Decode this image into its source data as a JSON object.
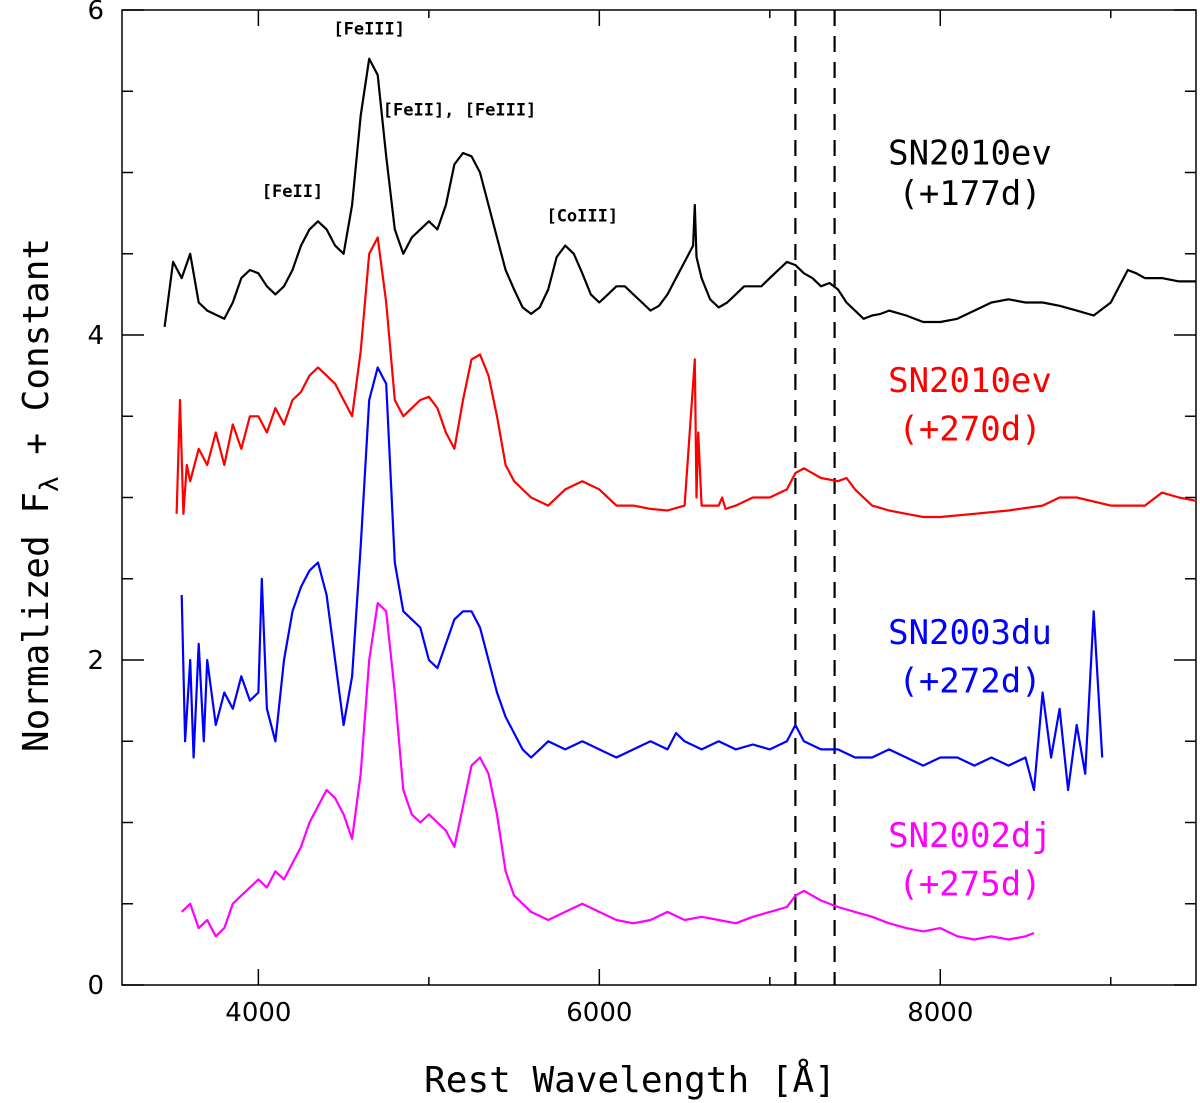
{
  "chart_data": {
    "type": "line",
    "xlabel": "Rest Wavelength [Å]",
    "ylabel": "Normalized F",
    "ylabel_subscript": "λ",
    "ylabel_suffix": " + Constant",
    "xlim": [
      3200,
      9500
    ],
    "ylim": [
      0,
      6
    ],
    "xticks": [
      4000,
      6000,
      8000
    ],
    "yticks": [
      0,
      2,
      4,
      6
    ],
    "grid": false,
    "vlines": [
      7150,
      7380
    ],
    "annotations": [
      {
        "text": "[FeII]",
        "x": 4200,
        "y": 4.85
      },
      {
        "text": "[FeIII]",
        "x": 4650,
        "y": 5.85
      },
      {
        "text": "[FeII], [FeIII]",
        "x": 5180,
        "y": 5.35
      },
      {
        "text": "[CoIII]",
        "x": 5900,
        "y": 4.7
      }
    ],
    "series": [
      {
        "name": "SN2010ev",
        "label_line2": "(+177d)",
        "color": "#000000",
        "label_y": [
          5.05,
          4.8
        ],
        "x": [
          3450,
          3500,
          3550,
          3600,
          3650,
          3700,
          3800,
          3850,
          3900,
          3950,
          4000,
          4050,
          4100,
          4150,
          4200,
          4250,
          4300,
          4350,
          4400,
          4450,
          4500,
          4550,
          4600,
          4650,
          4700,
          4750,
          4800,
          4850,
          4900,
          4950,
          5000,
          5050,
          5100,
          5150,
          5200,
          5250,
          5300,
          5350,
          5400,
          5450,
          5500,
          5550,
          5600,
          5650,
          5700,
          5750,
          5800,
          5850,
          5900,
          5950,
          6000,
          6050,
          6100,
          6150,
          6200,
          6250,
          6300,
          6350,
          6400,
          6450,
          6500,
          6550,
          6560,
          6570,
          6600,
          6650,
          6700,
          6750,
          6800,
          6850,
          6900,
          6950,
          7000,
          7050,
          7100,
          7150,
          7200,
          7250,
          7300,
          7350,
          7400,
          7450,
          7500,
          7550,
          7600,
          7650,
          7700,
          7800,
          7900,
          8000,
          8100,
          8200,
          8300,
          8400,
          8500,
          8600,
          8700,
          8800,
          8900,
          9000,
          9100,
          9150,
          9200,
          9300,
          9400,
          9500
        ],
        "y": [
          4.05,
          4.45,
          4.35,
          4.5,
          4.2,
          4.15,
          4.1,
          4.2,
          4.35,
          4.4,
          4.38,
          4.3,
          4.25,
          4.3,
          4.4,
          4.55,
          4.65,
          4.7,
          4.65,
          4.55,
          4.5,
          4.8,
          5.35,
          5.7,
          5.6,
          5.1,
          4.65,
          4.5,
          4.6,
          4.65,
          4.7,
          4.65,
          4.8,
          5.05,
          5.12,
          5.1,
          5.0,
          4.8,
          4.6,
          4.4,
          4.28,
          4.17,
          4.13,
          4.17,
          4.28,
          4.48,
          4.55,
          4.5,
          4.38,
          4.25,
          4.2,
          4.25,
          4.3,
          4.3,
          4.25,
          4.2,
          4.15,
          4.18,
          4.25,
          4.35,
          4.45,
          4.55,
          4.8,
          4.48,
          4.35,
          4.22,
          4.17,
          4.2,
          4.25,
          4.3,
          4.3,
          4.3,
          4.35,
          4.4,
          4.45,
          4.43,
          4.38,
          4.35,
          4.3,
          4.32,
          4.28,
          4.2,
          4.15,
          4.1,
          4.12,
          4.13,
          4.15,
          4.12,
          4.08,
          4.08,
          4.1,
          4.15,
          4.2,
          4.22,
          4.2,
          4.2,
          4.18,
          4.15,
          4.12,
          4.2,
          4.4,
          4.38,
          4.35,
          4.35,
          4.33,
          4.33
        ]
      },
      {
        "name": "SN2010ev",
        "label_line2": "(+270d)",
        "color": "#ff0000",
        "label_y": [
          3.65,
          3.35
        ],
        "x": [
          3520,
          3540,
          3560,
          3580,
          3600,
          3650,
          3700,
          3750,
          3800,
          3850,
          3900,
          3950,
          4000,
          4050,
          4100,
          4150,
          4200,
          4250,
          4300,
          4350,
          4400,
          4450,
          4500,
          4550,
          4600,
          4650,
          4700,
          4750,
          4800,
          4850,
          4900,
          4950,
          5000,
          5050,
          5100,
          5150,
          5200,
          5250,
          5300,
          5350,
          5400,
          5450,
          5500,
          5600,
          5700,
          5800,
          5900,
          6000,
          6100,
          6200,
          6300,
          6400,
          6500,
          6560,
          6570,
          6580,
          6600,
          6650,
          6700,
          6720,
          6740,
          6800,
          6900,
          7000,
          7100,
          7150,
          7200,
          7300,
          7400,
          7450,
          7500,
          7600,
          7700,
          7800,
          7900,
          8000,
          8200,
          8400,
          8600,
          8700,
          8800,
          9000,
          9200,
          9300,
          9400,
          9500
        ],
        "y": [
          2.9,
          3.6,
          2.9,
          3.2,
          3.1,
          3.3,
          3.2,
          3.4,
          3.2,
          3.45,
          3.3,
          3.5,
          3.5,
          3.4,
          3.55,
          3.45,
          3.6,
          3.65,
          3.75,
          3.8,
          3.75,
          3.7,
          3.6,
          3.5,
          3.9,
          4.5,
          4.6,
          4.2,
          3.6,
          3.5,
          3.55,
          3.6,
          3.62,
          3.55,
          3.4,
          3.3,
          3.6,
          3.85,
          3.88,
          3.75,
          3.5,
          3.2,
          3.1,
          3.0,
          2.95,
          3.05,
          3.1,
          3.05,
          2.95,
          2.95,
          2.93,
          2.92,
          2.95,
          3.85,
          3.0,
          3.4,
          2.95,
          2.95,
          2.95,
          3.0,
          2.93,
          2.95,
          3.0,
          3.0,
          3.05,
          3.15,
          3.18,
          3.12,
          3.1,
          3.12,
          3.05,
          2.95,
          2.92,
          2.9,
          2.88,
          2.88,
          2.9,
          2.92,
          2.95,
          3.0,
          3.0,
          2.95,
          2.95,
          3.03,
          3.0,
          2.98
        ]
      },
      {
        "name": "SN2003du",
        "label_line2": "(+272d)",
        "color": "#0000ff",
        "label_y": [
          2.1,
          1.8
        ],
        "x": [
          3550,
          3570,
          3600,
          3620,
          3650,
          3680,
          3700,
          3750,
          3800,
          3850,
          3900,
          3950,
          4000,
          4020,
          4050,
          4100,
          4150,
          4200,
          4250,
          4300,
          4350,
          4400,
          4450,
          4500,
          4550,
          4600,
          4650,
          4700,
          4750,
          4800,
          4850,
          4900,
          4950,
          5000,
          5050,
          5100,
          5150,
          5200,
          5250,
          5300,
          5350,
          5400,
          5450,
          5500,
          5550,
          5600,
          5650,
          5700,
          5800,
          5900,
          6000,
          6100,
          6200,
          6300,
          6400,
          6450,
          6500,
          6600,
          6700,
          6800,
          6900,
          7000,
          7100,
          7150,
          7200,
          7300,
          7400,
          7500,
          7600,
          7700,
          7800,
          7900,
          8000,
          8100,
          8200,
          8300,
          8400,
          8500,
          8550,
          8600,
          8650,
          8700,
          8750,
          8800,
          8850,
          8900,
          8950
        ],
        "y": [
          2.4,
          1.5,
          2.0,
          1.4,
          2.1,
          1.5,
          2.0,
          1.6,
          1.8,
          1.7,
          1.9,
          1.75,
          1.8,
          2.5,
          1.7,
          1.5,
          2.0,
          2.3,
          2.45,
          2.55,
          2.6,
          2.4,
          2.0,
          1.6,
          1.9,
          2.7,
          3.6,
          3.8,
          3.7,
          2.6,
          2.3,
          2.25,
          2.2,
          2.0,
          1.95,
          2.1,
          2.25,
          2.3,
          2.3,
          2.2,
          2.0,
          1.8,
          1.65,
          1.55,
          1.45,
          1.4,
          1.45,
          1.5,
          1.45,
          1.5,
          1.45,
          1.4,
          1.45,
          1.5,
          1.45,
          1.55,
          1.5,
          1.45,
          1.5,
          1.45,
          1.48,
          1.45,
          1.5,
          1.6,
          1.5,
          1.45,
          1.45,
          1.4,
          1.4,
          1.45,
          1.4,
          1.35,
          1.4,
          1.4,
          1.35,
          1.4,
          1.35,
          1.4,
          1.2,
          1.8,
          1.4,
          1.7,
          1.2,
          1.6,
          1.3,
          2.3,
          1.4
        ]
      },
      {
        "name": "SN2002dj",
        "label_line2": "(+275d)",
        "color": "#ff00ff",
        "label_y": [
          0.85,
          0.55
        ],
        "x": [
          3550,
          3600,
          3650,
          3700,
          3750,
          3800,
          3850,
          3900,
          3950,
          4000,
          4050,
          4100,
          4150,
          4200,
          4250,
          4300,
          4350,
          4400,
          4450,
          4500,
          4550,
          4600,
          4650,
          4700,
          4750,
          4800,
          4850,
          4900,
          4950,
          5000,
          5050,
          5100,
          5150,
          5200,
          5250,
          5300,
          5350,
          5400,
          5450,
          5500,
          5600,
          5700,
          5800,
          5900,
          6000,
          6100,
          6200,
          6300,
          6400,
          6500,
          6600,
          6700,
          6800,
          6900,
          7000,
          7100,
          7150,
          7200,
          7300,
          7400,
          7500,
          7600,
          7700,
          7800,
          7900,
          8000,
          8100,
          8200,
          8300,
          8400,
          8500,
          8550
        ],
        "y": [
          0.45,
          0.5,
          0.35,
          0.4,
          0.3,
          0.35,
          0.5,
          0.55,
          0.6,
          0.65,
          0.6,
          0.7,
          0.65,
          0.75,
          0.85,
          1.0,
          1.1,
          1.2,
          1.15,
          1.05,
          0.9,
          1.3,
          2.0,
          2.35,
          2.3,
          1.8,
          1.2,
          1.05,
          1.0,
          1.05,
          1.0,
          0.95,
          0.85,
          1.1,
          1.35,
          1.4,
          1.3,
          1.05,
          0.7,
          0.55,
          0.45,
          0.4,
          0.45,
          0.5,
          0.45,
          0.4,
          0.38,
          0.4,
          0.45,
          0.4,
          0.42,
          0.4,
          0.38,
          0.42,
          0.45,
          0.48,
          0.55,
          0.58,
          0.52,
          0.48,
          0.45,
          0.42,
          0.38,
          0.35,
          0.33,
          0.35,
          0.3,
          0.28,
          0.3,
          0.28,
          0.3,
          0.32
        ]
      }
    ]
  }
}
